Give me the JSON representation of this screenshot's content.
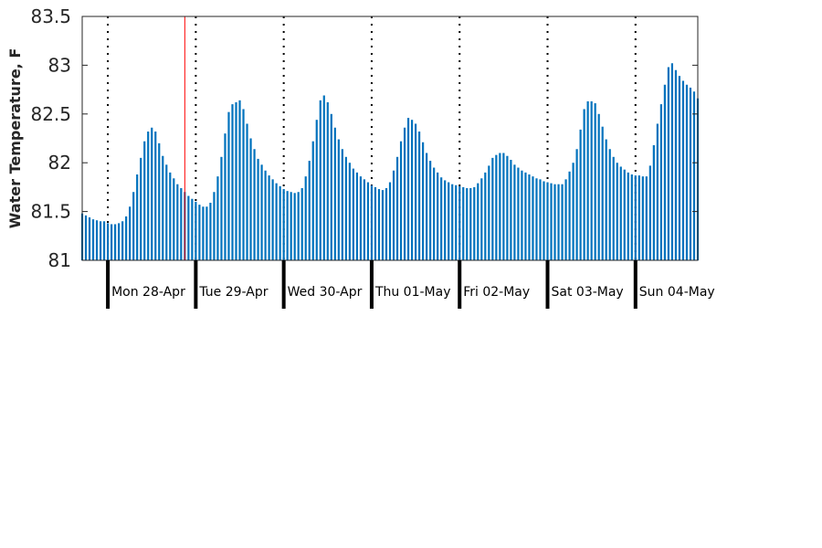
{
  "chart_data": {
    "type": "bar",
    "title": "",
    "xlabel": "",
    "ylabel": "Water Temperature, F",
    "ylim": [
      81,
      83.5
    ],
    "yticks": [
      81,
      81.5,
      82,
      82.5,
      83,
      83.5
    ],
    "ytick_labels": [
      "81",
      "81.5",
      "82",
      "82.5",
      "83",
      "83.5"
    ],
    "x_units": "hours relative to local midnight of Mon 28-Apr",
    "xlim": [
      -7,
      161
    ],
    "bar_interval_hours": 1,
    "bar_color": "#0072bd",
    "current_time_marker": {
      "x": 21,
      "color": "#ff0000"
    },
    "day_boundaries": [
      0,
      24,
      48,
      72,
      96,
      120,
      144
    ],
    "day_labels": [
      "Mon 28-Apr",
      "Tue 29-Apr",
      "Wed 30-Apr",
      "Thu 01-May",
      "Fri 02-May",
      "Sat 03-May",
      "Sun 04-May"
    ],
    "values": [
      81.48,
      81.46,
      81.44,
      81.42,
      81.41,
      81.4,
      81.4,
      81.38,
      81.37,
      81.37,
      81.38,
      81.4,
      81.45,
      81.55,
      81.7,
      81.88,
      82.05,
      82.22,
      82.32,
      82.36,
      82.32,
      82.2,
      82.07,
      81.98,
      81.9,
      81.84,
      81.78,
      81.74,
      81.7,
      81.66,
      81.63,
      81.6,
      81.57,
      81.55,
      81.55,
      81.59,
      81.7,
      81.86,
      82.06,
      82.3,
      82.52,
      82.6,
      82.62,
      82.64,
      82.55,
      82.4,
      82.25,
      82.14,
      82.04,
      81.98,
      81.92,
      81.87,
      81.83,
      81.79,
      81.76,
      81.73,
      81.71,
      81.7,
      81.69,
      81.7,
      81.74,
      81.86,
      82.02,
      82.22,
      82.44,
      82.64,
      82.69,
      82.62,
      82.5,
      82.36,
      82.24,
      82.14,
      82.06,
      82.0,
      81.94,
      81.9,
      81.86,
      81.83,
      81.8,
      81.77,
      81.75,
      81.73,
      81.72,
      81.74,
      81.8,
      81.92,
      82.06,
      82.22,
      82.36,
      82.46,
      82.44,
      82.4,
      82.32,
      82.21,
      82.1,
      82.02,
      81.95,
      81.9,
      81.85,
      81.82,
      81.8,
      81.78,
      81.77,
      81.76,
      81.75,
      81.74,
      81.74,
      81.75,
      81.79,
      81.84,
      81.9,
      81.97,
      82.05,
      82.08,
      82.1,
      82.1,
      82.07,
      82.03,
      81.98,
      81.95,
      81.92,
      81.9,
      81.88,
      81.86,
      81.84,
      81.83,
      81.81,
      81.8,
      81.79,
      81.78,
      81.78,
      81.78,
      81.83,
      81.91,
      82.0,
      82.14,
      82.34,
      82.55,
      82.63,
      82.63,
      82.61,
      82.5,
      82.37,
      82.24,
      82.14,
      82.06,
      82.0,
      81.96,
      81.93,
      81.9,
      81.88,
      81.87,
      81.87,
      81.86,
      81.86,
      81.97,
      82.18,
      82.4,
      82.6,
      82.8,
      82.98,
      83.02,
      82.95,
      82.89,
      82.84,
      82.8,
      82.77,
      82.73,
      82.66
    ]
  }
}
